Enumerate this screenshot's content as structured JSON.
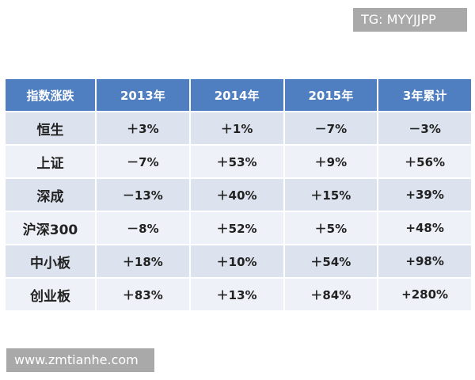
{
  "watermark_top": "TG: MYYJJPP",
  "table": {
    "header": [
      "指数涨跌",
      "2013年",
      "2014年",
      "2015年",
      "3年累计"
    ],
    "rows": [
      [
        "恒生",
        "＋3%",
        "＋1%",
        "－7%",
        "－3%"
      ],
      [
        "上证",
        "－7%",
        "＋53%",
        "＋9%",
        "＋56%"
      ],
      [
        "深成",
        "－13%",
        "＋40%",
        "＋15%",
        "+39%"
      ],
      [
        "沪深300",
        "－8%",
        "＋52%",
        "＋5%",
        "+48%"
      ],
      [
        "中小板",
        "＋18%",
        "＋10%",
        "＋54%",
        "+98%"
      ],
      [
        "创业板",
        "＋83%",
        "＋13%",
        "＋84%",
        "+280%"
      ]
    ]
  },
  "watermark_bottom": "www.zmtianhe.com"
}
